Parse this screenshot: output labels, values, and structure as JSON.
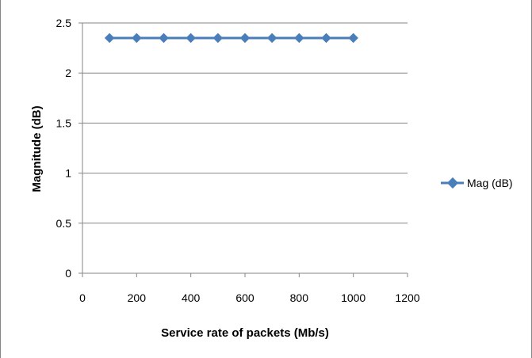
{
  "chart_data": {
    "type": "line",
    "title": "",
    "xlabel": "Service rate of packets (Mb/s)",
    "ylabel": "Magnitude (dB)",
    "xlim": [
      0,
      1200
    ],
    "ylim": [
      0,
      2.5
    ],
    "xticks": [
      0,
      200,
      400,
      600,
      800,
      1000,
      1200
    ],
    "xtick_labels": [
      "0",
      "200",
      "400",
      "600",
      "800",
      "1000",
      "1200"
    ],
    "yticks": [
      0,
      0.5,
      1,
      1.5,
      2,
      2.5
    ],
    "ytick_labels": [
      "0",
      "0.5",
      "1",
      "1.5",
      "2",
      "2.5"
    ],
    "grid": "horizontal",
    "legend_position": "right",
    "series": [
      {
        "name": "Mag (dB)",
        "color": "#4a7ebb",
        "marker": "diamond",
        "x": [
          100,
          200,
          300,
          400,
          500,
          600,
          700,
          800,
          900,
          1000
        ],
        "y": [
          2.35,
          2.35,
          2.35,
          2.35,
          2.35,
          2.35,
          2.35,
          2.35,
          2.35,
          2.35
        ]
      }
    ]
  }
}
